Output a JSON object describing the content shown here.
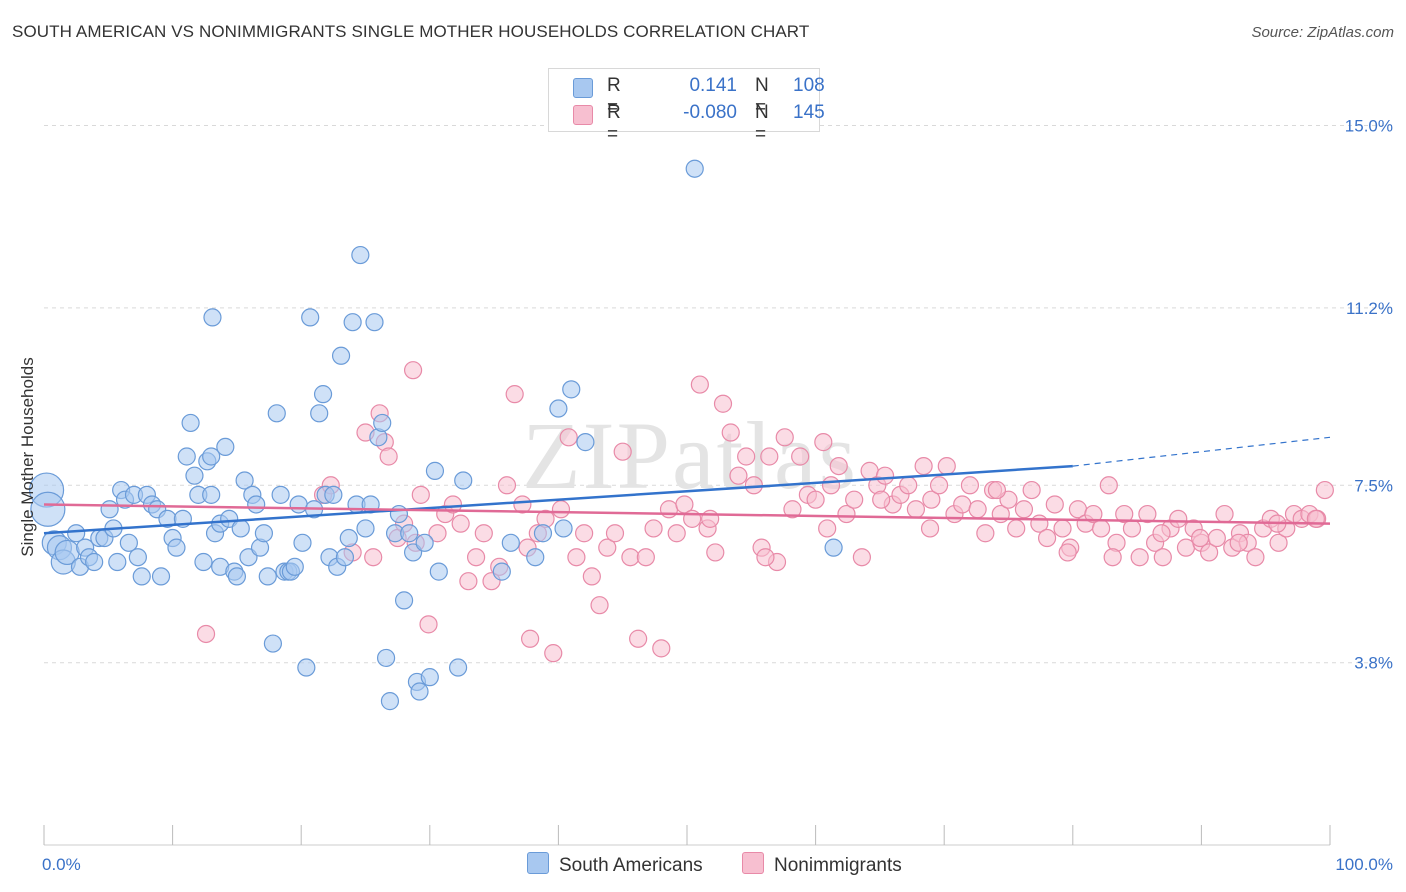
{
  "title": "SOUTH AMERICAN VS NONIMMIGRANTS SINGLE MOTHER HOUSEHOLDS CORRELATION CHART",
  "source": "Source: ZipAtlas.com",
  "watermark": "ZIPatlas",
  "legend": {
    "rows": [
      {
        "r_label": "R =",
        "r_value": "0.141",
        "n_label": "N =",
        "n_value": "108"
      },
      {
        "r_label": "R =",
        "r_value": "-0.080",
        "n_label": "N =",
        "n_value": "145"
      }
    ]
  },
  "bottom_legend": {
    "series_a": "South Americans",
    "series_b": "Nonimmigrants"
  },
  "colors": {
    "blue_fill": "#a8c8f0",
    "blue_stroke": "#6a9bd8",
    "blue_line": "#3373cc",
    "pink_fill": "#f7bfd0",
    "pink_stroke": "#e88aa8",
    "pink_line": "#e06a96",
    "axis_text": "#3a72c8",
    "grid": "#d9d9d9"
  },
  "chart_data": {
    "type": "scatter",
    "title": "SOUTH AMERICAN VS NONIMMIGRANTS SINGLE MOTHER HOUSEHOLDS CORRELATION CHART",
    "xlabel": "",
    "ylabel": "Single Mother Households",
    "x_tick_labels": [
      "0.0%",
      "100.0%"
    ],
    "y_tick_labels": [
      "15.0%",
      "11.2%",
      "7.5%",
      "3.8%"
    ],
    "y_ticks": [
      15.0,
      11.2,
      7.5,
      3.8
    ],
    "xlim": [
      0,
      100
    ],
    "ylim": [
      0,
      16.2
    ],
    "grid": true,
    "series": [
      {
        "name": "South Americans",
        "r": 0.141,
        "n": 108,
        "trend": {
          "x0": 0,
          "y0": 6.5,
          "x1": 80,
          "y1": 7.9,
          "dash_to_x": 100,
          "dash_to_y": 8.5
        },
        "points": [
          [
            0.2,
            7.4
          ],
          [
            0.3,
            7.0
          ],
          [
            0.8,
            6.3
          ],
          [
            1.2,
            6.2
          ],
          [
            1.5,
            5.9
          ],
          [
            1.8,
            6.1
          ],
          [
            2.5,
            6.5
          ],
          [
            2.8,
            5.8
          ],
          [
            3.2,
            6.2
          ],
          [
            3.5,
            6.0
          ],
          [
            3.9,
            5.9
          ],
          [
            4.3,
            6.4
          ],
          [
            4.7,
            6.4
          ],
          [
            5.1,
            7.0
          ],
          [
            5.4,
            6.6
          ],
          [
            5.7,
            5.9
          ],
          [
            6.0,
            7.4
          ],
          [
            6.3,
            7.2
          ],
          [
            6.6,
            6.3
          ],
          [
            7.0,
            7.3
          ],
          [
            7.3,
            6.0
          ],
          [
            7.6,
            5.6
          ],
          [
            8.0,
            7.3
          ],
          [
            8.4,
            7.1
          ],
          [
            8.8,
            7.0
          ],
          [
            9.1,
            5.6
          ],
          [
            9.6,
            6.8
          ],
          [
            10.0,
            6.4
          ],
          [
            10.3,
            6.2
          ],
          [
            10.8,
            6.8
          ],
          [
            11.1,
            8.1
          ],
          [
            11.4,
            8.8
          ],
          [
            11.7,
            7.7
          ],
          [
            12.0,
            7.3
          ],
          [
            12.4,
            5.9
          ],
          [
            12.7,
            8.0
          ],
          [
            13.0,
            8.1
          ],
          [
            13.3,
            6.5
          ],
          [
            13.7,
            6.7
          ],
          [
            13.0,
            7.3
          ],
          [
            13.1,
            11.0
          ],
          [
            13.7,
            5.8
          ],
          [
            14.1,
            8.3
          ],
          [
            14.4,
            6.8
          ],
          [
            14.8,
            5.7
          ],
          [
            15.0,
            5.6
          ],
          [
            15.3,
            6.6
          ],
          [
            15.6,
            7.6
          ],
          [
            15.9,
            6.0
          ],
          [
            16.2,
            7.3
          ],
          [
            16.5,
            7.1
          ],
          [
            16.8,
            6.2
          ],
          [
            17.1,
            6.5
          ],
          [
            17.4,
            5.6
          ],
          [
            17.8,
            4.2
          ],
          [
            18.1,
            9.0
          ],
          [
            18.4,
            7.3
          ],
          [
            18.7,
            5.7
          ],
          [
            19.0,
            5.7
          ],
          [
            19.2,
            5.7
          ],
          [
            19.5,
            5.8
          ],
          [
            19.8,
            7.1
          ],
          [
            20.1,
            6.3
          ],
          [
            20.4,
            3.7
          ],
          [
            20.7,
            11.0
          ],
          [
            21.0,
            7.0
          ],
          [
            21.4,
            9.0
          ],
          [
            21.7,
            9.4
          ],
          [
            21.9,
            7.3
          ],
          [
            22.2,
            6.0
          ],
          [
            22.5,
            7.3
          ],
          [
            22.8,
            5.8
          ],
          [
            23.1,
            10.2
          ],
          [
            23.4,
            6.0
          ],
          [
            23.7,
            6.4
          ],
          [
            24.0,
            10.9
          ],
          [
            24.3,
            7.1
          ],
          [
            24.6,
            12.3
          ],
          [
            25.0,
            6.6
          ],
          [
            25.4,
            7.1
          ],
          [
            25.7,
            10.9
          ],
          [
            26.0,
            8.5
          ],
          [
            26.3,
            8.8
          ],
          [
            26.6,
            3.9
          ],
          [
            26.9,
            3.0
          ],
          [
            27.3,
            6.5
          ],
          [
            27.6,
            6.9
          ],
          [
            28.0,
            5.1
          ],
          [
            28.4,
            6.5
          ],
          [
            28.7,
            6.1
          ],
          [
            29.0,
            3.4
          ],
          [
            29.2,
            3.2
          ],
          [
            29.6,
            6.3
          ],
          [
            30.0,
            3.5
          ],
          [
            30.4,
            7.8
          ],
          [
            30.7,
            5.7
          ],
          [
            32.2,
            3.7
          ],
          [
            32.6,
            7.6
          ],
          [
            35.6,
            5.7
          ],
          [
            36.3,
            6.3
          ],
          [
            38.2,
            6.0
          ],
          [
            38.8,
            6.5
          ],
          [
            40.0,
            9.1
          ],
          [
            40.4,
            6.6
          ],
          [
            41.0,
            9.5
          ],
          [
            42.1,
            8.4
          ],
          [
            50.6,
            14.1
          ],
          [
            61.4,
            6.2
          ]
        ]
      },
      {
        "name": "Nonimmigrants",
        "r": -0.08,
        "n": 145,
        "trend": {
          "x0": 0,
          "y0": 7.1,
          "x1": 100,
          "y1": 6.7
        },
        "points": [
          [
            12.6,
            4.4
          ],
          [
            21.7,
            7.3
          ],
          [
            22.3,
            7.5
          ],
          [
            24.0,
            6.1
          ],
          [
            25.0,
            8.6
          ],
          [
            25.6,
            6.0
          ],
          [
            26.1,
            9.0
          ],
          [
            26.5,
            8.4
          ],
          [
            26.8,
            8.1
          ],
          [
            27.5,
            6.4
          ],
          [
            28.0,
            6.7
          ],
          [
            28.7,
            9.9
          ],
          [
            29.3,
            7.3
          ],
          [
            29.9,
            4.6
          ],
          [
            30.6,
            6.5
          ],
          [
            31.2,
            6.9
          ],
          [
            31.8,
            7.1
          ],
          [
            32.4,
            6.7
          ],
          [
            33.0,
            5.5
          ],
          [
            33.6,
            6.0
          ],
          [
            34.2,
            6.5
          ],
          [
            34.8,
            5.5
          ],
          [
            35.4,
            5.8
          ],
          [
            36.0,
            7.5
          ],
          [
            36.6,
            9.4
          ],
          [
            37.2,
            7.1
          ],
          [
            37.8,
            4.3
          ],
          [
            38.4,
            6.5
          ],
          [
            39.0,
            6.8
          ],
          [
            39.6,
            4.0
          ],
          [
            40.2,
            7.0
          ],
          [
            40.8,
            8.5
          ],
          [
            41.4,
            6.0
          ],
          [
            42.0,
            6.5
          ],
          [
            42.6,
            5.6
          ],
          [
            43.2,
            5.0
          ],
          [
            43.8,
            6.2
          ],
          [
            44.4,
            6.5
          ],
          [
            45.0,
            8.2
          ],
          [
            45.6,
            6.0
          ],
          [
            46.2,
            4.3
          ],
          [
            46.8,
            6.0
          ],
          [
            47.4,
            6.6
          ],
          [
            48.0,
            4.1
          ],
          [
            48.6,
            7.0
          ],
          [
            49.2,
            6.5
          ],
          [
            49.8,
            7.1
          ],
          [
            50.4,
            6.8
          ],
          [
            51.0,
            9.6
          ],
          [
            51.6,
            6.6
          ],
          [
            52.2,
            6.1
          ],
          [
            52.8,
            9.2
          ],
          [
            53.4,
            8.6
          ],
          [
            54.0,
            7.7
          ],
          [
            54.6,
            8.1
          ],
          [
            55.2,
            7.5
          ],
          [
            55.8,
            6.2
          ],
          [
            56.4,
            8.1
          ],
          [
            57.0,
            5.9
          ],
          [
            57.6,
            8.5
          ],
          [
            58.2,
            7.0
          ],
          [
            58.8,
            8.1
          ],
          [
            59.4,
            7.3
          ],
          [
            60.0,
            7.2
          ],
          [
            60.6,
            8.4
          ],
          [
            61.2,
            7.5
          ],
          [
            61.8,
            7.9
          ],
          [
            62.4,
            6.9
          ],
          [
            63.0,
            7.2
          ],
          [
            63.6,
            6.0
          ],
          [
            64.2,
            7.8
          ],
          [
            64.8,
            7.5
          ],
          [
            65.4,
            7.7
          ],
          [
            66.0,
            7.1
          ],
          [
            66.6,
            7.3
          ],
          [
            67.2,
            7.5
          ],
          [
            67.8,
            7.0
          ],
          [
            68.4,
            7.9
          ],
          [
            69.0,
            7.2
          ],
          [
            69.6,
            7.5
          ],
          [
            70.2,
            7.9
          ],
          [
            70.8,
            6.9
          ],
          [
            71.4,
            7.1
          ],
          [
            72.0,
            7.5
          ],
          [
            72.6,
            7.0
          ],
          [
            73.2,
            6.5
          ],
          [
            73.8,
            7.4
          ],
          [
            74.4,
            6.9
          ],
          [
            75.0,
            7.2
          ],
          [
            75.6,
            6.6
          ],
          [
            76.2,
            7.0
          ],
          [
            76.8,
            7.4
          ],
          [
            77.4,
            6.7
          ],
          [
            78.0,
            6.4
          ],
          [
            78.6,
            7.1
          ],
          [
            79.2,
            6.6
          ],
          [
            79.8,
            6.2
          ],
          [
            80.4,
            7.0
          ],
          [
            81.0,
            6.7
          ],
          [
            81.6,
            6.9
          ],
          [
            82.2,
            6.6
          ],
          [
            82.8,
            7.5
          ],
          [
            83.4,
            6.3
          ],
          [
            84.0,
            6.9
          ],
          [
            84.6,
            6.6
          ],
          [
            85.2,
            6.0
          ],
          [
            85.8,
            6.9
          ],
          [
            86.4,
            6.3
          ],
          [
            87.0,
            6.0
          ],
          [
            87.6,
            6.6
          ],
          [
            88.2,
            6.8
          ],
          [
            88.8,
            6.2
          ],
          [
            89.4,
            6.6
          ],
          [
            90.0,
            6.3
          ],
          [
            90.6,
            6.1
          ],
          [
            91.2,
            6.4
          ],
          [
            91.8,
            6.9
          ],
          [
            92.4,
            6.2
          ],
          [
            93.0,
            6.5
          ],
          [
            93.6,
            6.3
          ],
          [
            94.2,
            6.0
          ],
          [
            94.8,
            6.6
          ],
          [
            95.4,
            6.8
          ],
          [
            96.0,
            6.3
          ],
          [
            96.6,
            6.6
          ],
          [
            97.2,
            6.9
          ],
          [
            97.8,
            6.8
          ],
          [
            98.4,
            6.9
          ],
          [
            99.0,
            6.8
          ],
          [
            99.6,
            7.4
          ],
          [
            28.9,
            6.3
          ],
          [
            37.6,
            6.2
          ],
          [
            51.8,
            6.8
          ],
          [
            56.1,
            6.0
          ],
          [
            60.9,
            6.6
          ],
          [
            65.1,
            7.2
          ],
          [
            68.9,
            6.6
          ],
          [
            74.1,
            7.4
          ],
          [
            79.6,
            6.1
          ],
          [
            83.1,
            6.0
          ],
          [
            86.9,
            6.5
          ],
          [
            89.9,
            6.4
          ],
          [
            92.9,
            6.3
          ],
          [
            95.9,
            6.7
          ],
          [
            98.9,
            6.8
          ]
        ]
      }
    ]
  }
}
